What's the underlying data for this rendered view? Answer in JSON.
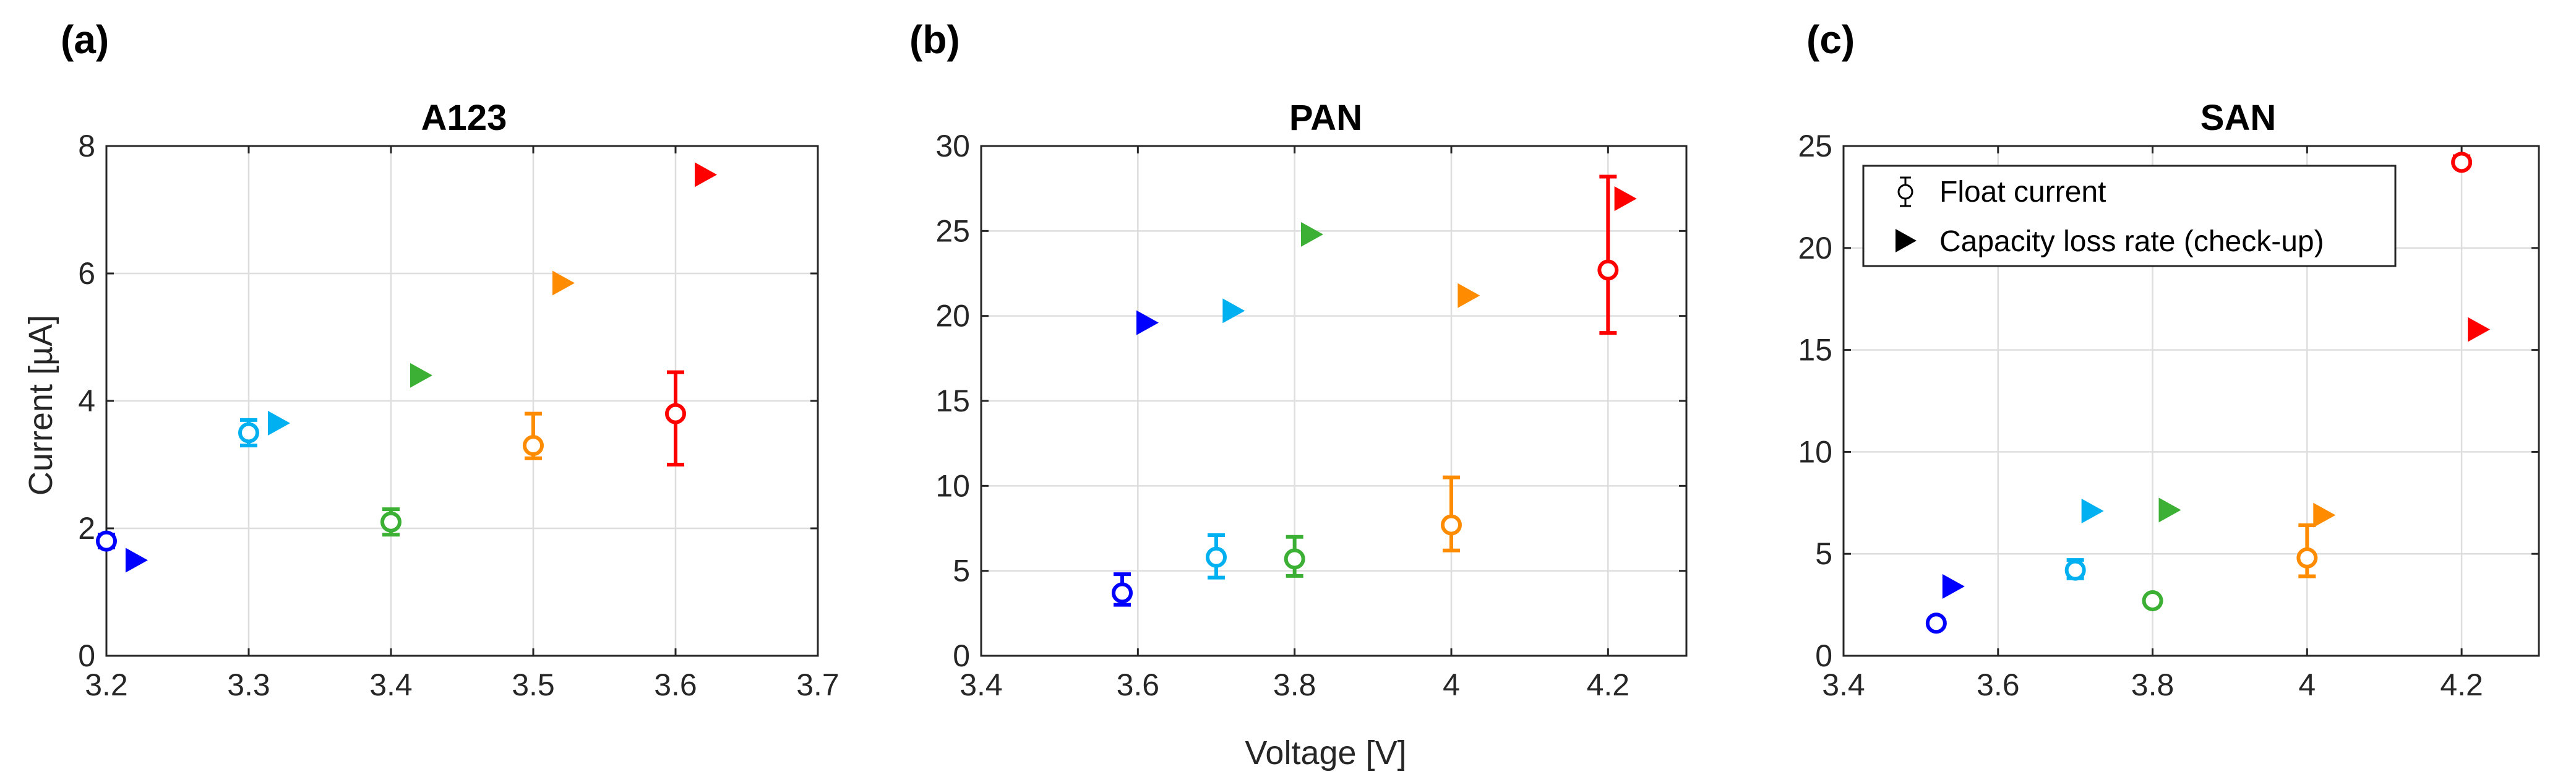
{
  "figure": {
    "shared_xlabel": "Voltage [V]"
  },
  "chart_data": [
    {
      "type": "scatter",
      "panel_label": "(a)",
      "title": "A123",
      "xlabel": "",
      "ylabel": "Current [µA]",
      "xlim": [
        3.2,
        3.7
      ],
      "ylim": [
        0,
        8
      ],
      "xticks": [
        3.2,
        3.3,
        3.4,
        3.5,
        3.6,
        3.7
      ],
      "yticks": [
        0,
        2,
        4,
        6,
        8
      ],
      "xtick_labels": [
        "3.2",
        "3.3",
        "3.4",
        "3.5",
        "3.6",
        "3.7"
      ],
      "ytick_labels": [
        "0",
        "2",
        "4",
        "6",
        "8"
      ],
      "grid": true,
      "series": [
        {
          "name": "Float current",
          "marker": "circle",
          "points": [
            {
              "x": 3.2,
              "y": 1.8,
              "err_low": 1.7,
              "err_high": 1.9,
              "color": "#0000ff"
            },
            {
              "x": 3.3,
              "y": 3.5,
              "err_low": 3.3,
              "err_high": 3.7,
              "color": "#00b0f0"
            },
            {
              "x": 3.4,
              "y": 2.1,
              "err_low": 1.9,
              "err_high": 2.3,
              "color": "#3cb034"
            },
            {
              "x": 3.5,
              "y": 3.3,
              "err_low": 3.1,
              "err_high": 3.8,
              "color": "#ff8c00"
            },
            {
              "x": 3.6,
              "y": 3.8,
              "err_low": 3.0,
              "err_high": 4.45,
              "color": "#ff0000"
            }
          ]
        },
        {
          "name": "Capacity loss rate (check-up)",
          "marker": "triangle-right",
          "points": [
            {
              "x": 3.22,
              "y": 1.5,
              "color": "#0000ff"
            },
            {
              "x": 3.32,
              "y": 3.65,
              "color": "#00b0f0"
            },
            {
              "x": 3.42,
              "y": 4.4,
              "color": "#3cb034"
            },
            {
              "x": 3.52,
              "y": 5.85,
              "color": "#ff8c00"
            },
            {
              "x": 3.62,
              "y": 7.55,
              "color": "#ff0000"
            }
          ]
        }
      ]
    },
    {
      "type": "scatter",
      "panel_label": "(b)",
      "title": "PAN",
      "xlabel": "Voltage [V]",
      "ylabel": "",
      "xlim": [
        3.4,
        4.3
      ],
      "ylim": [
        0,
        30
      ],
      "xticks": [
        3.4,
        3.6,
        3.8,
        4.0,
        4.2
      ],
      "yticks": [
        0,
        5,
        10,
        15,
        20,
        25,
        30
      ],
      "xtick_labels": [
        "3.4",
        "3.6",
        "3.8",
        "4",
        "4.2"
      ],
      "ytick_labels": [
        "0",
        "5",
        "10",
        "15",
        "20",
        "25",
        "30"
      ],
      "grid": true,
      "series": [
        {
          "name": "Float current",
          "marker": "circle",
          "points": [
            {
              "x": 3.58,
              "y": 3.7,
              "err_low": 3.0,
              "err_high": 4.8,
              "color": "#0000ff"
            },
            {
              "x": 3.7,
              "y": 5.8,
              "err_low": 4.6,
              "err_high": 7.1,
              "color": "#00b0f0"
            },
            {
              "x": 3.8,
              "y": 5.7,
              "err_low": 4.7,
              "err_high": 7.0,
              "color": "#3cb034"
            },
            {
              "x": 4.0,
              "y": 7.7,
              "err_low": 6.2,
              "err_high": 10.5,
              "color": "#ff8c00"
            },
            {
              "x": 4.2,
              "y": 22.7,
              "err_low": 19.0,
              "err_high": 28.2,
              "color": "#ff0000"
            }
          ]
        },
        {
          "name": "Capacity loss rate (check-up)",
          "marker": "triangle-right",
          "points": [
            {
              "x": 3.61,
              "y": 19.6,
              "color": "#0000ff"
            },
            {
              "x": 3.72,
              "y": 20.3,
              "color": "#00b0f0"
            },
            {
              "x": 3.82,
              "y": 24.8,
              "color": "#3cb034"
            },
            {
              "x": 4.02,
              "y": 21.2,
              "color": "#ff8c00"
            },
            {
              "x": 4.22,
              "y": 26.9,
              "color": "#ff0000"
            }
          ]
        }
      ]
    },
    {
      "type": "scatter",
      "panel_label": "(c)",
      "title": "SAN",
      "xlabel": "",
      "ylabel": "",
      "xlim": [
        3.4,
        4.3
      ],
      "ylim": [
        0,
        25
      ],
      "xticks": [
        3.4,
        3.6,
        3.8,
        4.0,
        4.2
      ],
      "yticks": [
        0,
        5,
        10,
        15,
        20,
        25
      ],
      "xtick_labels": [
        "3.4",
        "3.6",
        "3.8",
        "4",
        "4.2"
      ],
      "ytick_labels": [
        "0",
        "5",
        "10",
        "15",
        "20",
        "25"
      ],
      "grid": true,
      "legend": {
        "position": "top-left",
        "entries": [
          "Float current",
          "Capacity loss rate (check-up)"
        ]
      },
      "series": [
        {
          "name": "Float current",
          "marker": "circle",
          "points": [
            {
              "x": 3.52,
              "y": 1.6,
              "err_low": 1.5,
              "err_high": 1.7,
              "color": "#0000ff"
            },
            {
              "x": 3.7,
              "y": 4.2,
              "err_low": 3.8,
              "err_high": 4.7,
              "color": "#00b0f0"
            },
            {
              "x": 3.8,
              "y": 2.7,
              "err_low": 2.5,
              "err_high": 2.9,
              "color": "#3cb034"
            },
            {
              "x": 4.0,
              "y": 4.8,
              "err_low": 3.9,
              "err_high": 6.4,
              "color": "#ff8c00"
            },
            {
              "x": 4.2,
              "y": 24.2,
              "err_low": 24.0,
              "err_high": 24.5,
              "color": "#ff0000"
            }
          ]
        },
        {
          "name": "Capacity loss rate (check-up)",
          "marker": "triangle-right",
          "points": [
            {
              "x": 3.54,
              "y": 3.4,
              "color": "#0000ff"
            },
            {
              "x": 3.72,
              "y": 7.1,
              "color": "#00b0f0"
            },
            {
              "x": 3.82,
              "y": 7.15,
              "color": "#3cb034"
            },
            {
              "x": 4.02,
              "y": 6.9,
              "color": "#ff8c00"
            },
            {
              "x": 4.22,
              "y": 16.0,
              "color": "#ff0000"
            }
          ]
        }
      ]
    }
  ]
}
